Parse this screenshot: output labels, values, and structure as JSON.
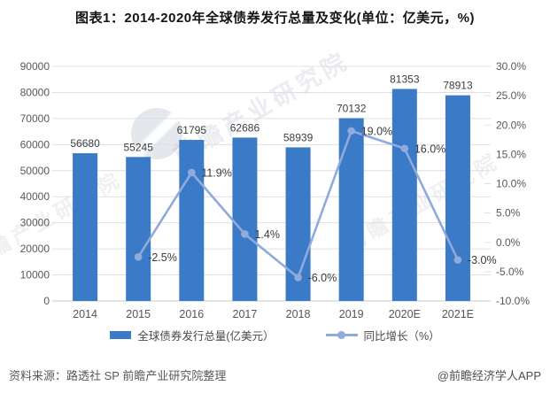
{
  "watermark": {
    "text": "前瞻产业研究院"
  },
  "footer": {
    "source": "资料来源：路透社 SP 前瞻产业研究院整理",
    "brand": "@前瞻经济学人APP"
  },
  "colors": {
    "bar": "#3B7AC6",
    "line": "#8FAADC",
    "grid": "#DCE0E6",
    "axis_line": "#C6CBD2",
    "axis_text": "#595959",
    "label_text": "#3A3A3A"
  },
  "chart_data": {
    "type": "combo-bar-line",
    "title": "图表1：2014-2020年全球债券发行总量及变化(单位：亿美元，%)",
    "categories": [
      "2014",
      "2015",
      "2016",
      "2017",
      "2018",
      "2019",
      "2020E",
      "2021E"
    ],
    "series": [
      {
        "name": "全球债券发行总量(亿美元）",
        "type": "bar",
        "axis": "left",
        "color": "#3B7AC6",
        "values": [
          56680,
          55245,
          61795,
          62686,
          58939,
          70132,
          81353,
          78913
        ],
        "labels": [
          "56680",
          "55245",
          "61795",
          "62686",
          "58939",
          "70132",
          "81353",
          "78913"
        ]
      },
      {
        "name": "同比增长（%）",
        "type": "line",
        "axis": "right",
        "color": "#8FAADC",
        "values": [
          null,
          -2.5,
          11.9,
          1.4,
          -6.0,
          19.0,
          16.0,
          -3.0
        ],
        "labels": [
          null,
          "-2.5%",
          "11.9%",
          "1.4%",
          "-6.0%",
          "19.0%",
          "16.0%",
          "-3.0%"
        ]
      }
    ],
    "left_axis": {
      "min": 0,
      "max": 90000,
      "step": 10000,
      "tick_labels": [
        "0",
        "10000",
        "20000",
        "30000",
        "40000",
        "50000",
        "60000",
        "70000",
        "80000",
        "90000"
      ]
    },
    "right_axis": {
      "min": -10,
      "max": 30,
      "step": 5,
      "tick_labels": [
        "-10.0%",
        "-5.0%",
        "0.0%",
        "5.0%",
        "10.0%",
        "15.0%",
        "20.0%",
        "25.0%",
        "30.0%"
      ]
    },
    "grid": true,
    "legend_position": "bottom"
  }
}
